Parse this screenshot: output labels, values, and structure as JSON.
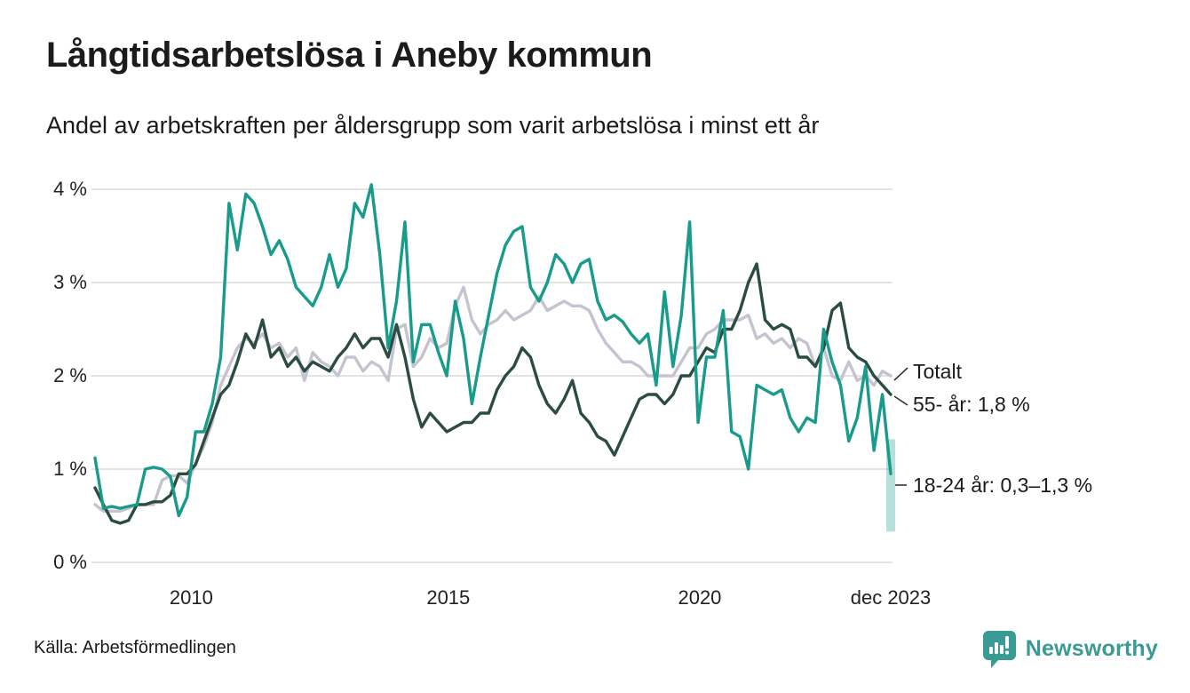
{
  "header": {
    "title": "Långtidsarbetslösa i Aneby kommun",
    "subtitle": "Andel av arbetskraften per åldersgrupp som varit arbetslösa i minst ett år"
  },
  "annotations": {
    "totalt_label": "Totalt",
    "age55_label": "55- år: 1,8 %",
    "age1824_label": "18-24 år: 0,3–1,3 %"
  },
  "source": {
    "label": "Källa: Arbetsförmedlingen"
  },
  "branding": {
    "name": "Newsworthy",
    "brand_color": "#3a9a94"
  },
  "chart_data": {
    "type": "line",
    "title": "Långtidsarbetslösa i Aneby kommun",
    "subtitle": "Andel av arbetskraften per åldersgrupp som varit arbetslösa i minst ett år",
    "xlabel": "",
    "ylabel": "",
    "ylim": [
      0,
      4
    ],
    "x_range": [
      "2008",
      "dec 2023"
    ],
    "grid": true,
    "grid_color": "#e3e3e3",
    "legend_position": "right-annotations",
    "y_ticks": [
      {
        "value": 4,
        "label": "4 %"
      },
      {
        "value": 3,
        "label": "3 %"
      },
      {
        "value": 2,
        "label": "2 %"
      },
      {
        "value": 1,
        "label": "1 %"
      },
      {
        "value": 0,
        "label": "0 %"
      }
    ],
    "x_ticks": [
      {
        "label": "2010",
        "pos": 0.121
      },
      {
        "label": "2015",
        "pos": 0.444
      },
      {
        "label": "2020",
        "pos": 0.76
      },
      {
        "label": "dec 2023",
        "pos": 1.0
      }
    ],
    "unit": "% av arbetskraften",
    "sampling": "bimonthly 2008–dec 2023 (approx values read from chart)",
    "series": [
      {
        "name": "Totalt",
        "color": "#c5c3d0",
        "end_label": "Totalt",
        "end_value": 2.0,
        "values": [
          0.62,
          0.55,
          0.55,
          0.55,
          0.58,
          0.62,
          0.62,
          0.62,
          0.88,
          0.93,
          0.93,
          0.85,
          1.05,
          1.25,
          1.5,
          1.9,
          2.1,
          2.3,
          2.4,
          2.35,
          2.45,
          2.3,
          2.35,
          2.2,
          2.3,
          1.95,
          2.25,
          2.15,
          2.1,
          2.0,
          2.2,
          2.2,
          2.05,
          2.15,
          2.1,
          1.95,
          2.5,
          2.55,
          2.1,
          2.2,
          2.4,
          2.3,
          2.35,
          2.75,
          2.95,
          2.6,
          2.45,
          2.55,
          2.6,
          2.7,
          2.6,
          2.65,
          2.7,
          2.85,
          2.7,
          2.75,
          2.8,
          2.75,
          2.75,
          2.7,
          2.5,
          2.35,
          2.25,
          2.15,
          2.15,
          2.1,
          2.0,
          2.0,
          2.0,
          2.0,
          2.15,
          2.3,
          2.3,
          2.45,
          2.5,
          2.6,
          2.6,
          2.6,
          2.65,
          2.4,
          2.45,
          2.35,
          2.4,
          2.3,
          2.4,
          2.35,
          2.1,
          2.3,
          2.0,
          1.95,
          2.15,
          1.95,
          2.0,
          1.9,
          2.05,
          2.0
        ]
      },
      {
        "name": "55- år",
        "color": "#2b4c41",
        "end_label": "55- år: 1,8 %",
        "end_value": 1.8,
        "values": [
          0.8,
          0.62,
          0.45,
          0.42,
          0.45,
          0.62,
          0.62,
          0.65,
          0.65,
          0.72,
          0.95,
          0.95,
          1.05,
          1.3,
          1.55,
          1.8,
          1.9,
          2.15,
          2.45,
          2.3,
          2.6,
          2.2,
          2.3,
          2.1,
          2.2,
          2.05,
          2.15,
          2.1,
          2.05,
          2.2,
          2.3,
          2.45,
          2.3,
          2.4,
          2.4,
          2.2,
          2.55,
          2.2,
          1.75,
          1.45,
          1.6,
          1.5,
          1.4,
          1.45,
          1.5,
          1.5,
          1.6,
          1.6,
          1.85,
          2.0,
          2.1,
          2.3,
          2.2,
          1.9,
          1.7,
          1.6,
          1.75,
          1.95,
          1.6,
          1.5,
          1.35,
          1.3,
          1.15,
          1.35,
          1.55,
          1.75,
          1.8,
          1.8,
          1.7,
          1.8,
          2.0,
          2.0,
          2.15,
          2.3,
          2.25,
          2.5,
          2.5,
          2.7,
          3.0,
          3.2,
          2.6,
          2.5,
          2.55,
          2.5,
          2.2,
          2.2,
          2.1,
          2.3,
          2.7,
          2.78,
          2.3,
          2.2,
          2.15,
          2.0,
          1.9,
          1.8
        ]
      },
      {
        "name": "18-24 år",
        "color": "#189b8a",
        "end_label": "18-24 år: 0,3–1,3 %",
        "end_value_range": [
          0.3,
          1.3
        ],
        "values": [
          1.12,
          0.58,
          0.6,
          0.58,
          0.6,
          0.62,
          1.0,
          1.02,
          1.0,
          0.92,
          0.5,
          0.7,
          1.4,
          1.4,
          1.7,
          2.2,
          3.85,
          3.35,
          3.95,
          3.85,
          3.6,
          3.3,
          3.45,
          3.25,
          2.95,
          2.85,
          2.75,
          2.95,
          3.3,
          2.95,
          3.15,
          3.85,
          3.7,
          4.05,
          3.3,
          2.3,
          2.8,
          3.65,
          2.15,
          2.55,
          2.55,
          2.25,
          2.0,
          2.8,
          2.4,
          1.7,
          2.2,
          2.65,
          3.1,
          3.4,
          3.55,
          3.6,
          2.95,
          2.8,
          3.0,
          3.3,
          3.2,
          3.0,
          3.2,
          3.25,
          2.8,
          2.6,
          2.65,
          2.58,
          2.45,
          2.35,
          2.45,
          1.9,
          2.9,
          2.1,
          2.65,
          3.65,
          1.5,
          2.2,
          2.2,
          2.7,
          1.4,
          1.35,
          1.0,
          1.9,
          1.85,
          1.8,
          1.85,
          1.55,
          1.4,
          1.55,
          1.5,
          2.5,
          2.15,
          1.9,
          1.3,
          1.55,
          2.1,
          1.2,
          1.8,
          0.95
        ]
      }
    ],
    "uncertainty_band": {
      "series": "18-24 år",
      "low": 0.33,
      "high": 1.32,
      "color": "#189b8a",
      "opacity": 0.32
    }
  }
}
